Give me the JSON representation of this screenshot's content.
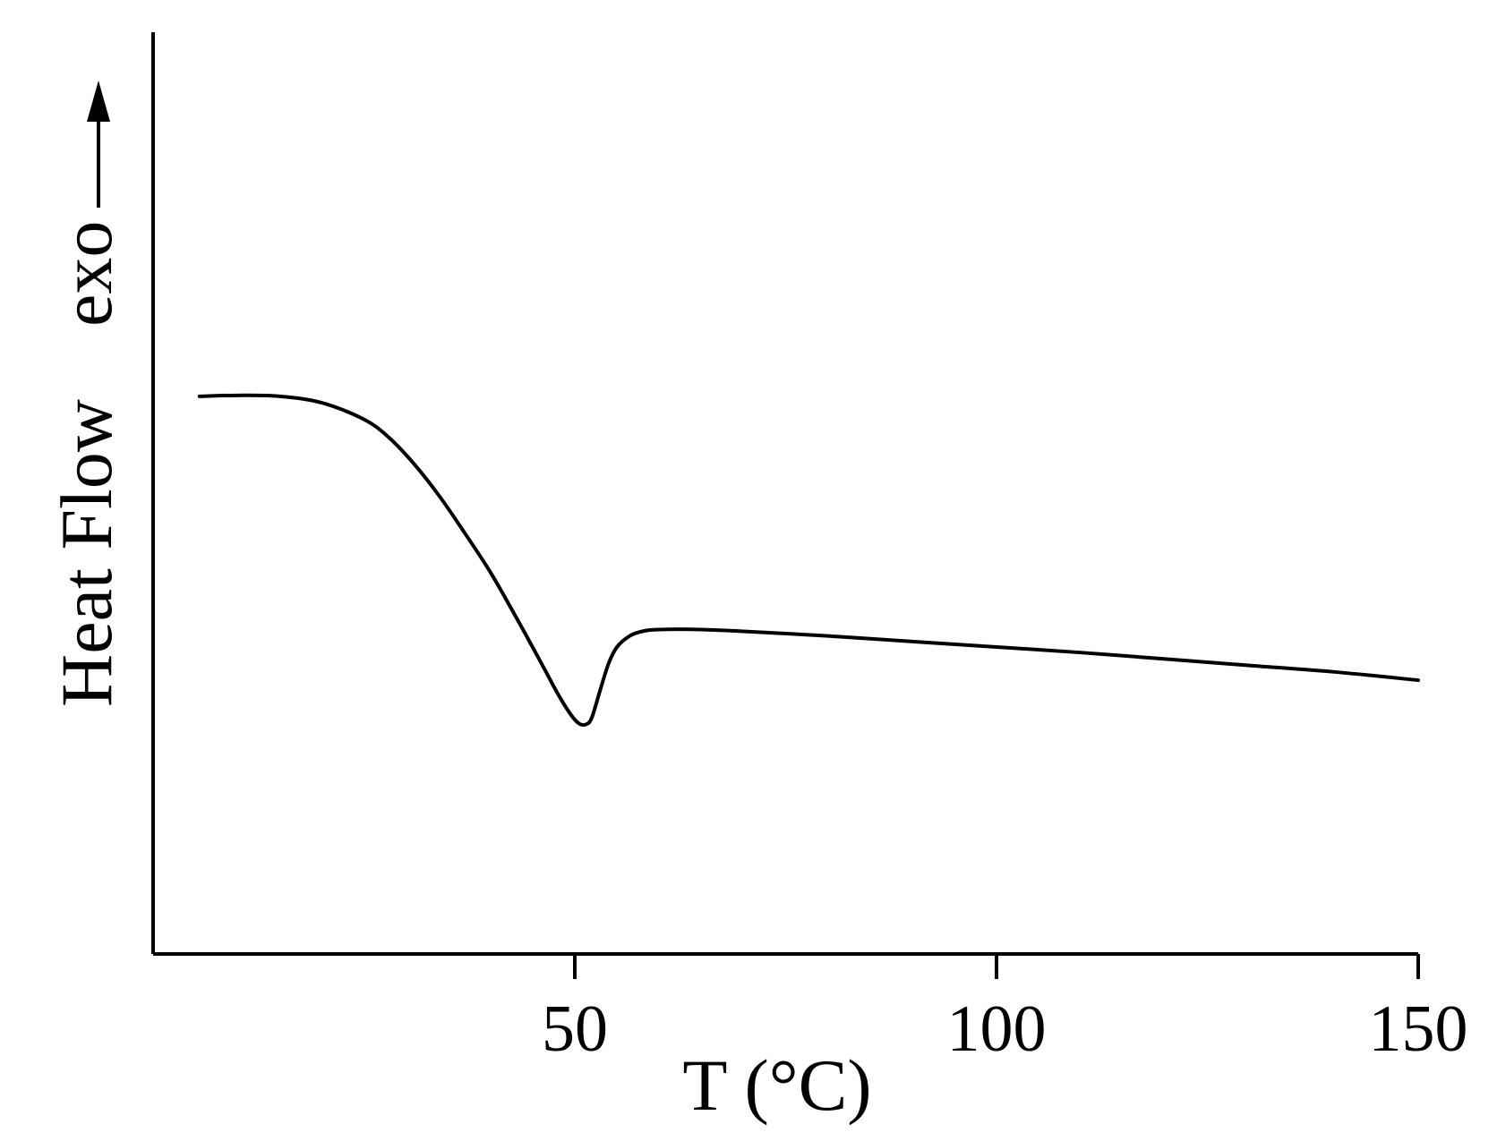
{
  "chart_data": {
    "type": "line",
    "title": "",
    "xlabel": "T (°C)",
    "ylabel": "Heat Flow",
    "y_direction_annotation": "exo",
    "x_ticks": [
      50,
      100,
      150
    ],
    "x_tick_labels": [
      "50",
      "100",
      "150"
    ],
    "xlim": [
      0,
      150
    ],
    "ylim": [
      0,
      100
    ],
    "grid": false,
    "y_tick_labels_shown": false,
    "series": [
      {
        "x": [
          5.5,
          10,
          15,
          20,
          25,
          28,
          31,
          34,
          37,
          40,
          43,
          46,
          48,
          49.5,
          50.5,
          51.3,
          52,
          53,
          54,
          55,
          56.5,
          58,
          60,
          65,
          70,
          80,
          90,
          100,
          110,
          120,
          130,
          140,
          150
        ],
        "values": [
          60.5,
          60.6,
          60.5,
          59.8,
          58.0,
          56.0,
          53.1,
          49.6,
          45.6,
          41.4,
          36.6,
          31.6,
          28.2,
          26.0,
          25.0,
          24.9,
          25.6,
          28.6,
          31.5,
          33.3,
          34.5,
          35.0,
          35.2,
          35.2,
          35.0,
          34.5,
          33.9,
          33.3,
          32.7,
          32.0,
          31.3,
          30.6,
          29.7
        ]
      }
    ]
  }
}
